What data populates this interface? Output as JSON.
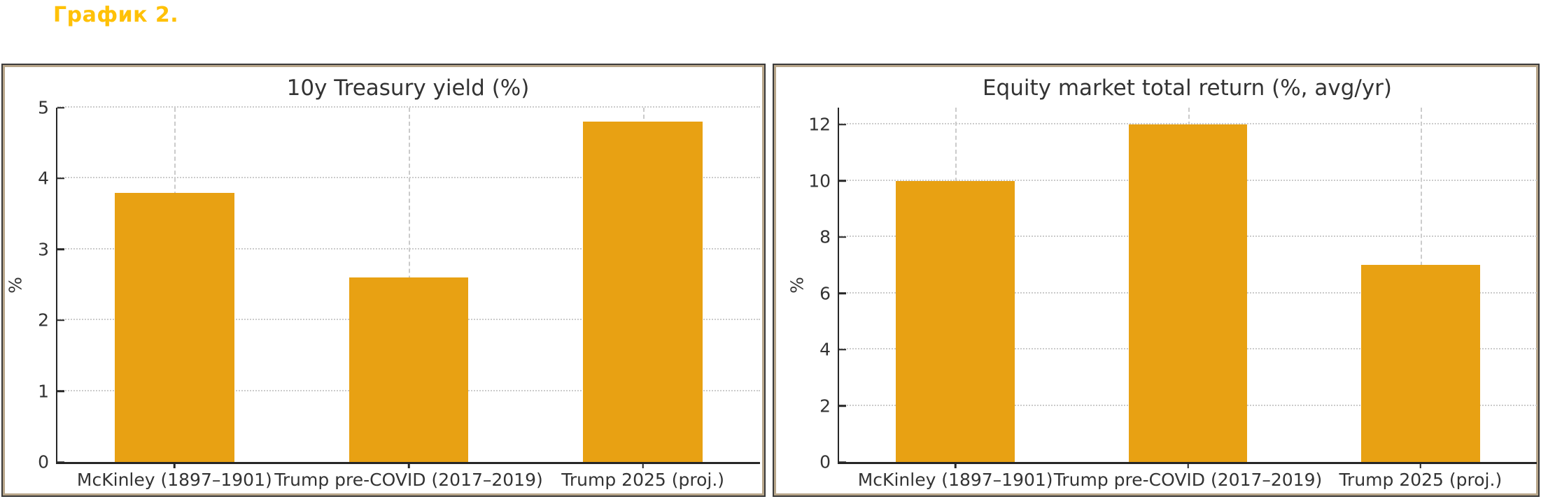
{
  "page": {
    "title": "График 2.",
    "title_color": "#FFC107",
    "background": "#FFFFFF"
  },
  "colors": {
    "bar": "#E8A113",
    "panel_border": "#B8A68A",
    "panel_outline": "#3A3A3A",
    "grid": "#CBCBCB",
    "spine": "#262626",
    "text": "#333333"
  },
  "chart_data": [
    {
      "type": "bar",
      "title": "10y Treasury yield (%)",
      "xlabel": "",
      "ylabel": "%",
      "categories": [
        "McKinley (1897–1901)",
        "Trump pre-COVID (2017–2019)",
        "Trump 2025 (proj.)"
      ],
      "values": [
        3.8,
        2.6,
        4.8
      ],
      "yticks": [
        0,
        1,
        2,
        3,
        4,
        5
      ],
      "ylim": [
        0,
        5.0
      ],
      "grid": true,
      "legend_position": "none",
      "bar_color": "#E8A113"
    },
    {
      "type": "bar",
      "title": "Equity market total return (%, avg/yr)",
      "xlabel": "",
      "ylabel": "%",
      "categories": [
        "McKinley (1897–1901)",
        "Trump pre-COVID (2017–2019)",
        "Trump 2025 (proj.)"
      ],
      "values": [
        10,
        12,
        7
      ],
      "yticks": [
        0,
        2,
        4,
        6,
        8,
        10,
        12
      ],
      "ylim": [
        0,
        12.6
      ],
      "grid": true,
      "legend_position": "none",
      "bar_color": "#E8A113"
    }
  ]
}
